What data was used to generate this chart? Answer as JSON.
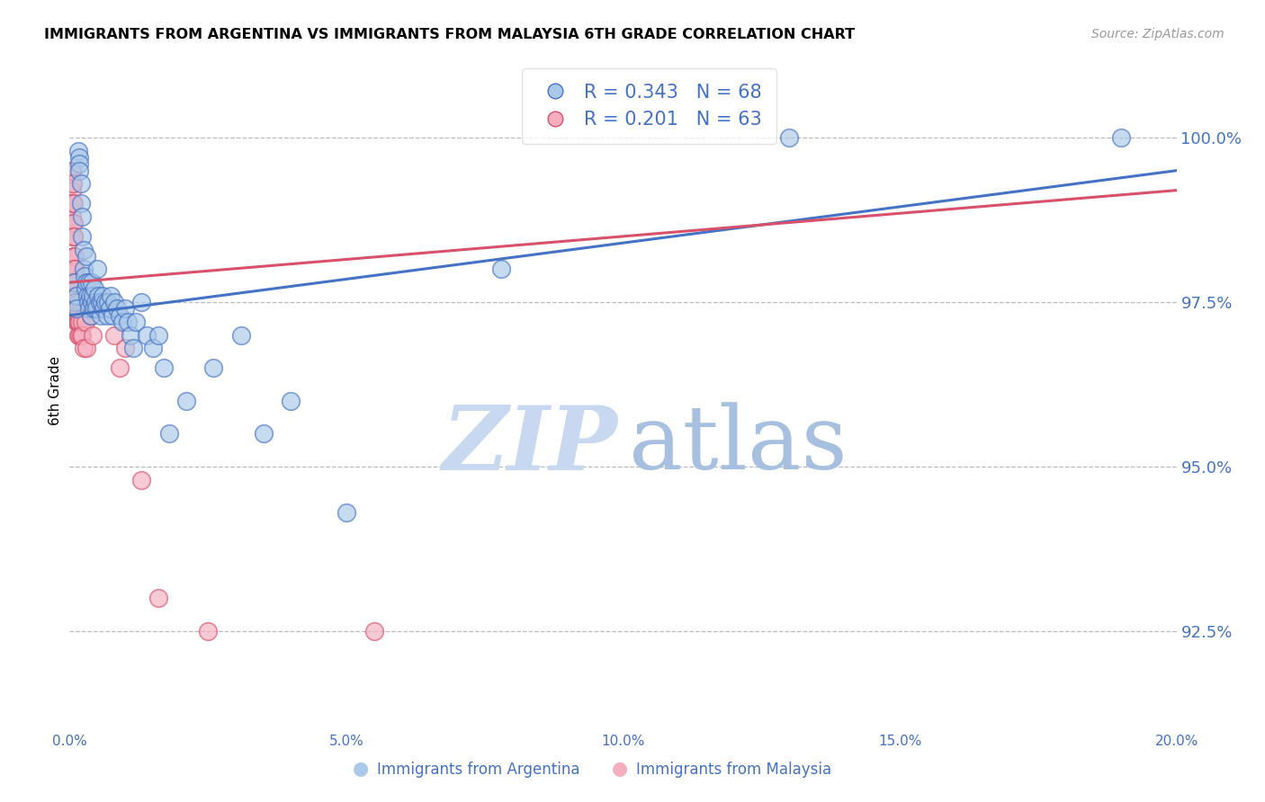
{
  "title": "IMMIGRANTS FROM ARGENTINA VS IMMIGRANTS FROM MALAYSIA 6TH GRADE CORRELATION CHART",
  "source": "Source: ZipAtlas.com",
  "ylabel": "6th Grade",
  "y_ticks": [
    92.5,
    95.0,
    97.5,
    100.0
  ],
  "y_tick_labels": [
    "92.5%",
    "95.0%",
    "97.5%",
    "100.0%"
  ],
  "xlim": [
    0.0,
    20.0
  ],
  "ylim": [
    91.0,
    101.3
  ],
  "argentina_R": 0.343,
  "argentina_N": 68,
  "malaysia_R": 0.201,
  "malaysia_N": 63,
  "argentina_color": "#aac8e8",
  "malaysia_color": "#f4aec0",
  "argentina_line_color": "#4472c4",
  "malaysia_line_color": "#d9506a",
  "blue_text": "#4472c4",
  "watermark_zip_color": "#c8d8f0",
  "watermark_atlas_color": "#a8c0e0",
  "legend_argentina_label": "Immigrants from Argentina",
  "legend_malaysia_label": "Immigrants from Malaysia",
  "argentina_x": [
    0.08,
    0.09,
    0.12,
    0.13,
    0.15,
    0.17,
    0.18,
    0.18,
    0.2,
    0.2,
    0.22,
    0.22,
    0.25,
    0.25,
    0.27,
    0.28,
    0.3,
    0.3,
    0.32,
    0.33,
    0.35,
    0.35,
    0.37,
    0.38,
    0.4,
    0.4,
    0.42,
    0.43,
    0.45,
    0.46,
    0.48,
    0.5,
    0.52,
    0.55,
    0.56,
    0.58,
    0.6,
    0.62,
    0.65,
    0.67,
    0.7,
    0.72,
    0.75,
    0.78,
    0.8,
    0.85,
    0.9,
    0.95,
    1.0,
    1.05,
    1.1,
    1.15,
    1.2,
    1.3,
    1.4,
    1.5,
    1.6,
    1.7,
    1.8,
    2.1,
    2.6,
    3.1,
    3.5,
    4.0,
    5.0,
    7.8,
    13.0,
    19.0
  ],
  "argentina_y": [
    97.8,
    97.5,
    97.6,
    97.4,
    99.8,
    99.7,
    99.6,
    99.5,
    99.3,
    99.0,
    98.8,
    98.5,
    98.3,
    98.0,
    97.9,
    97.7,
    98.2,
    97.8,
    97.6,
    97.5,
    97.8,
    97.4,
    97.6,
    97.3,
    97.8,
    97.5,
    97.6,
    97.4,
    97.7,
    97.5,
    97.4,
    98.0,
    97.6,
    97.5,
    97.3,
    97.5,
    97.6,
    97.4,
    97.5,
    97.3,
    97.5,
    97.4,
    97.6,
    97.3,
    97.5,
    97.4,
    97.3,
    97.2,
    97.4,
    97.2,
    97.0,
    96.8,
    97.2,
    97.5,
    97.0,
    96.8,
    97.0,
    96.5,
    95.5,
    96.0,
    96.5,
    97.0,
    95.5,
    96.0,
    94.3,
    98.0,
    100.0,
    100.0
  ],
  "malaysia_x": [
    0.03,
    0.03,
    0.04,
    0.04,
    0.05,
    0.05,
    0.05,
    0.05,
    0.05,
    0.06,
    0.06,
    0.06,
    0.07,
    0.07,
    0.07,
    0.07,
    0.08,
    0.08,
    0.08,
    0.08,
    0.09,
    0.09,
    0.09,
    0.1,
    0.1,
    0.1,
    0.1,
    0.11,
    0.11,
    0.11,
    0.12,
    0.12,
    0.12,
    0.13,
    0.13,
    0.14,
    0.14,
    0.15,
    0.15,
    0.16,
    0.16,
    0.17,
    0.18,
    0.2,
    0.2,
    0.22,
    0.23,
    0.25,
    0.28,
    0.3,
    0.35,
    0.38,
    0.42,
    0.5,
    0.6,
    0.7,
    0.8,
    0.9,
    1.0,
    1.3,
    1.6,
    2.5,
    5.5
  ],
  "malaysia_y": [
    97.8,
    97.5,
    99.5,
    99.3,
    99.5,
    99.2,
    99.0,
    98.8,
    98.5,
    99.3,
    99.0,
    98.7,
    99.0,
    98.7,
    98.5,
    98.2,
    98.5,
    98.2,
    98.0,
    97.8,
    98.2,
    98.0,
    97.8,
    98.0,
    97.8,
    97.6,
    97.4,
    97.8,
    97.6,
    97.4,
    97.6,
    97.4,
    97.2,
    97.5,
    97.3,
    97.4,
    97.2,
    97.5,
    97.3,
    97.2,
    97.0,
    97.2,
    97.0,
    97.5,
    97.0,
    97.2,
    97.0,
    96.8,
    97.2,
    96.8,
    97.5,
    97.3,
    97.0,
    97.5,
    97.5,
    97.5,
    97.0,
    96.5,
    96.8,
    94.8,
    93.0,
    92.5,
    92.5
  ],
  "argentina_trend_x": [
    0.0,
    20.0
  ],
  "argentina_trend_y": [
    97.3,
    99.5
  ],
  "malaysia_trend_x": [
    0.0,
    20.0
  ],
  "malaysia_trend_y": [
    97.8,
    99.2
  ]
}
